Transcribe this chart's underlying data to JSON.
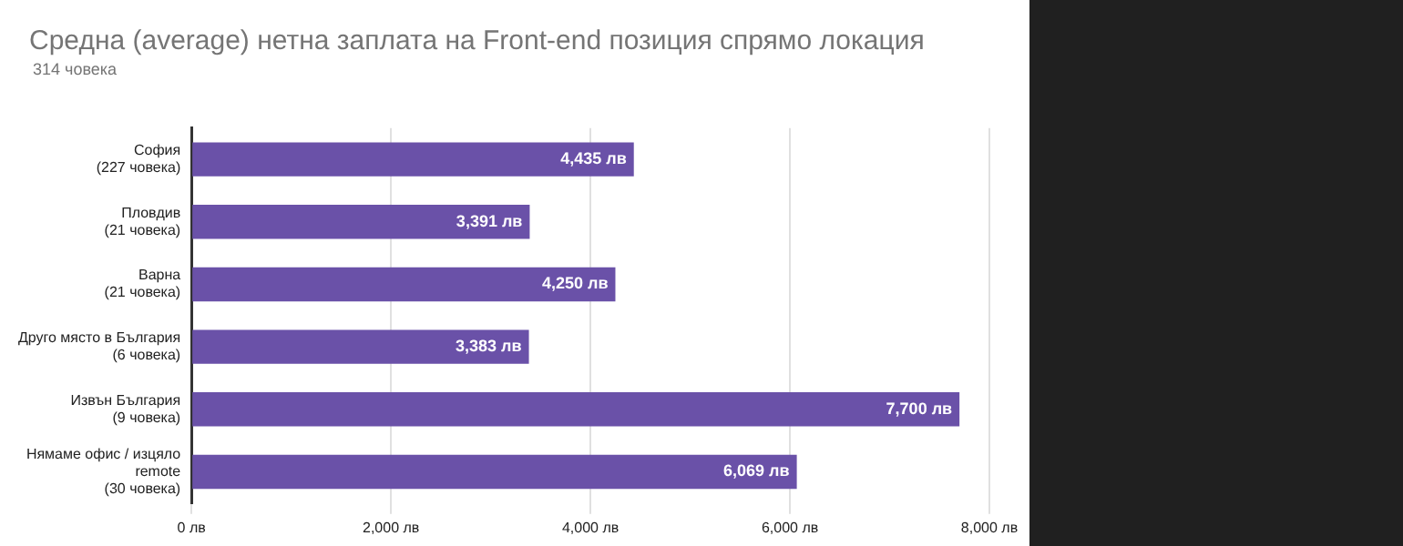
{
  "chart_data": {
    "type": "bar",
    "orientation": "horizontal",
    "title": "Средна (average) нетна заплата на Front-end позиция спрямо локация",
    "subtitle": "314 човека",
    "categories": [
      "София\n(227 човека)",
      "Пловдив\n(21 човека)",
      "Варна\n(21 човека)",
      "Друго място в България\n(6 човека)",
      "Извън България\n(9 човека)",
      "Нямаме офис / изцяло\nremote\n(30 човека)"
    ],
    "values": [
      4435,
      3391,
      4250,
      3383,
      7700,
      6069
    ],
    "value_labels": [
      "4,435 лв",
      "3,391 лв",
      "4,250 лв",
      "3,383 лв",
      "7,700 лв",
      "6,069 лв"
    ],
    "color": "#6a51a8",
    "xlim": [
      0,
      8000
    ],
    "xticks": [
      {
        "value": 0,
        "label": "0 лв"
      },
      {
        "value": 2000,
        "label": "2,000 лв"
      },
      {
        "value": 4000,
        "label": "4,000 лв"
      },
      {
        "value": 6000,
        "label": "6,000 лв"
      },
      {
        "value": 8000,
        "label": "8,000 лв"
      }
    ],
    "grid": "x",
    "legend": false
  }
}
